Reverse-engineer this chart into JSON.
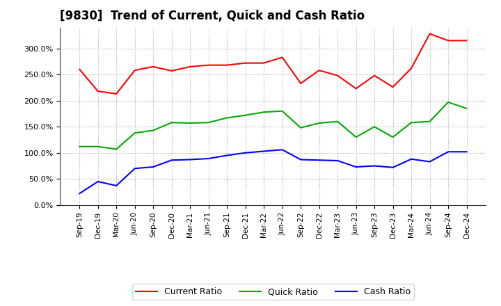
{
  "title": "[9830]  Trend of Current, Quick and Cash Ratio",
  "x_labels": [
    "Sep-19",
    "Dec-19",
    "Mar-20",
    "Jun-20",
    "Sep-20",
    "Dec-20",
    "Mar-21",
    "Jun-21",
    "Sep-21",
    "Dec-21",
    "Mar-22",
    "Jun-22",
    "Sep-22",
    "Dec-22",
    "Mar-23",
    "Jun-23",
    "Sep-23",
    "Dec-23",
    "Mar-24",
    "Jun-24",
    "Sep-24",
    "Dec-24"
  ],
  "current_ratio": [
    260,
    218,
    213,
    258,
    265,
    257,
    265,
    268,
    268,
    272,
    272,
    283,
    233,
    258,
    248,
    223,
    248,
    226,
    262,
    328,
    315,
    315
  ],
  "quick_ratio": [
    112,
    112,
    107,
    138,
    143,
    158,
    157,
    158,
    167,
    172,
    178,
    180,
    148,
    157,
    160,
    130,
    150,
    130,
    158,
    160,
    197,
    185
  ],
  "cash_ratio": [
    22,
    45,
    37,
    70,
    73,
    86,
    87,
    89,
    95,
    100,
    103,
    106,
    87,
    86,
    85,
    73,
    75,
    72,
    88,
    83,
    102,
    102
  ],
  "ylim": [
    0,
    340
  ],
  "yticks": [
    0,
    50,
    100,
    150,
    200,
    250,
    300
  ],
  "current_color": "#ff0000",
  "quick_color": "#00aa00",
  "cash_color": "#0000ff",
  "background_color": "#ffffff",
  "grid_color": "#aaaaaa",
  "title_fontsize": 12,
  "legend_labels": [
    "Current Ratio",
    "Quick Ratio",
    "Cash Ratio"
  ]
}
